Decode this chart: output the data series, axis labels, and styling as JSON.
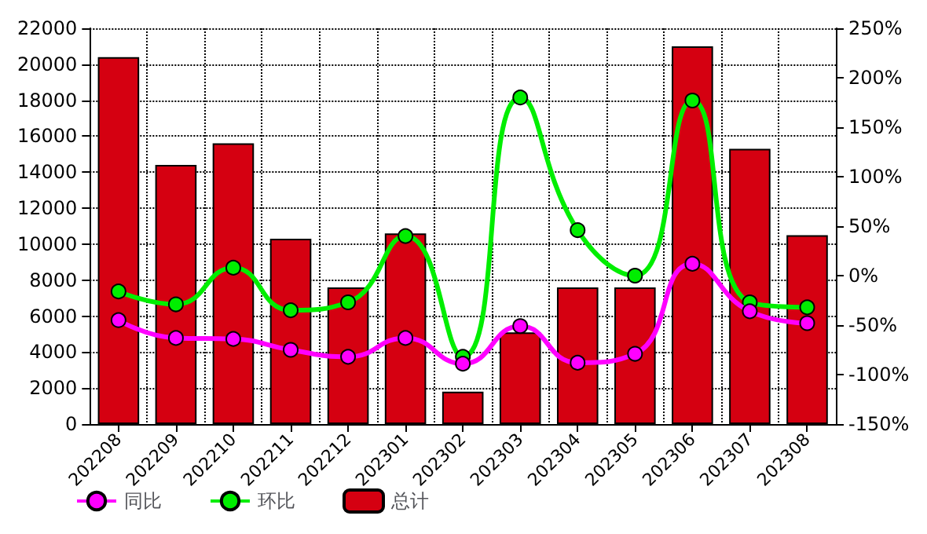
{
  "chart_data": {
    "type": "bar",
    "categories": [
      "202208",
      "202209",
      "202210",
      "202211",
      "202212",
      "202301",
      "202302",
      "202303",
      "202304",
      "202305",
      "202306",
      "202307",
      "202308"
    ],
    "series": [
      {
        "name": "同比",
        "type": "line",
        "axis": "y2",
        "color": "#ff00ff",
        "values": [
          -45,
          -63,
          -64,
          -75,
          -82,
          -63,
          -89,
          -51,
          -88,
          -79,
          12,
          -36,
          -48
        ]
      },
      {
        "name": "环比",
        "type": "line",
        "axis": "y2",
        "color": "#00ee00",
        "values": [
          -16,
          -29,
          8,
          -35,
          -27,
          40,
          -82,
          180,
          46,
          0,
          177,
          -27,
          -32
        ]
      },
      {
        "name": "总计",
        "color": "#d50011",
        "values": [
          20400,
          14400,
          15600,
          10300,
          7600,
          10600,
          1800,
          5100,
          7600,
          7600,
          21000,
          15300,
          10500
        ]
      }
    ],
    "ylim": [
      0,
      22000
    ],
    "yticks": [
      0,
      2000,
      4000,
      6000,
      8000,
      10000,
      12000,
      14000,
      16000,
      18000,
      20000,
      22000
    ],
    "y2lim": [
      -150,
      250
    ],
    "y2ticks": [
      {
        "value": -150,
        "label": "-150%"
      },
      {
        "value": -100,
        "label": "-100%"
      },
      {
        "value": -50,
        "label": "-50%"
      },
      {
        "value": 0,
        "label": "0%"
      },
      {
        "value": 50,
        "label": "50%"
      },
      {
        "value": 100,
        "label": "100%"
      },
      {
        "value": 150,
        "label": "150%"
      },
      {
        "value": 200,
        "label": "200%"
      },
      {
        "value": 250,
        "label": "250%"
      }
    ],
    "grid": true,
    "legend": "bottom left",
    "marker": "circle",
    "line_style": "solid"
  }
}
